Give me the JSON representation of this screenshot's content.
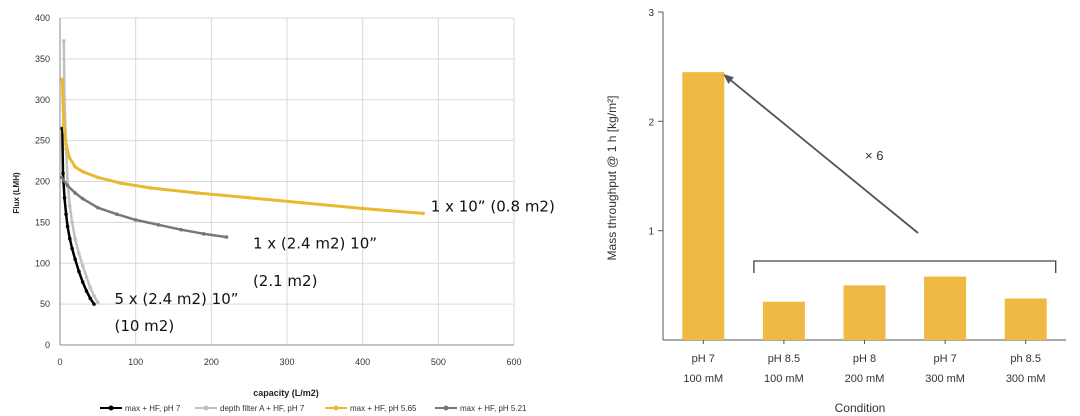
{
  "chart_data": [
    {
      "type": "line",
      "xlabel": "capacity (L/m2)",
      "ylabel": "Flux (LMH)",
      "xlim": [
        0,
        600
      ],
      "ylim": [
        0,
        400
      ],
      "xticks": [
        "0",
        "100",
        "200",
        "300",
        "400",
        "500",
        "600"
      ],
      "yticks": [
        "0",
        "50",
        "100",
        "150",
        "200",
        "250",
        "300",
        "350",
        "400"
      ],
      "grid": true,
      "legend": "bottom",
      "series": [
        {
          "name": "max + HF, pH 7",
          "color": "#000000",
          "x": [
            3,
            4,
            6,
            8,
            10,
            13,
            16,
            20,
            25,
            30,
            35,
            40,
            45
          ],
          "y": [
            265,
            210,
            180,
            160,
            145,
            130,
            118,
            105,
            90,
            77,
            66,
            57,
            50
          ]
        },
        {
          "name": "depth filter A + HF, pH 7",
          "color": "#c0c0c0",
          "x": [
            5,
            6,
            8,
            10,
            13,
            16,
            20,
            25,
            30,
            35,
            40,
            45,
            50
          ],
          "y": [
            372,
            300,
            240,
            200,
            170,
            150,
            130,
            112,
            97,
            83,
            70,
            60,
            52
          ]
        },
        {
          "name": "max + HF, pH 5.65",
          "color": "#e8b931",
          "x": [
            3,
            5,
            8,
            12,
            20,
            30,
            50,
            80,
            120,
            180,
            250,
            320,
            400,
            480
          ],
          "y": [
            325,
            270,
            245,
            230,
            218,
            212,
            205,
            198,
            192,
            186,
            180,
            174,
            167,
            161
          ]
        },
        {
          "name": "max + HF, pH 5.21",
          "color": "#777777",
          "x": [
            2,
            10,
            20,
            30,
            50,
            75,
            100,
            130,
            160,
            190,
            220
          ],
          "y": [
            205,
            195,
            186,
            179,
            168,
            160,
            153,
            147,
            141,
            136,
            132
          ]
        }
      ],
      "annotations": [
        {
          "text": "1 x 10” (0.8 m2)",
          "x": 490,
          "y": 163
        },
        {
          "text": "1 x (2.4 m2) 10”",
          "x": 255,
          "y": 118
        },
        {
          "text": "(2.1 m2)",
          "x": 255,
          "y": 72
        },
        {
          "text": "5 x  (2.4 m2) 10”",
          "x": 72,
          "y": 50
        },
        {
          "text": "(10 m2)",
          "x": 72,
          "y": 17
        }
      ]
    },
    {
      "type": "bar",
      "xlabel": "Condition",
      "ylabel": "Mass throughput @ 1 h [kg/m²]",
      "ylim": [
        0,
        3
      ],
      "yticks": [
        "1",
        "2",
        "3"
      ],
      "color": "#f0b944",
      "categories": [
        {
          "line1": "pH 7",
          "line2": "100 mM"
        },
        {
          "line1": "pH 8.5",
          "line2": "100 mM"
        },
        {
          "line1": "pH 8",
          "line2": "200 mM"
        },
        {
          "line1": "pH 7",
          "line2": "300 mM"
        },
        {
          "line1": "ph 8.5",
          "line2": "300 mM"
        }
      ],
      "values": [
        2.45,
        0.35,
        0.5,
        0.58,
        0.38
      ],
      "annotation": "× 6"
    }
  ]
}
